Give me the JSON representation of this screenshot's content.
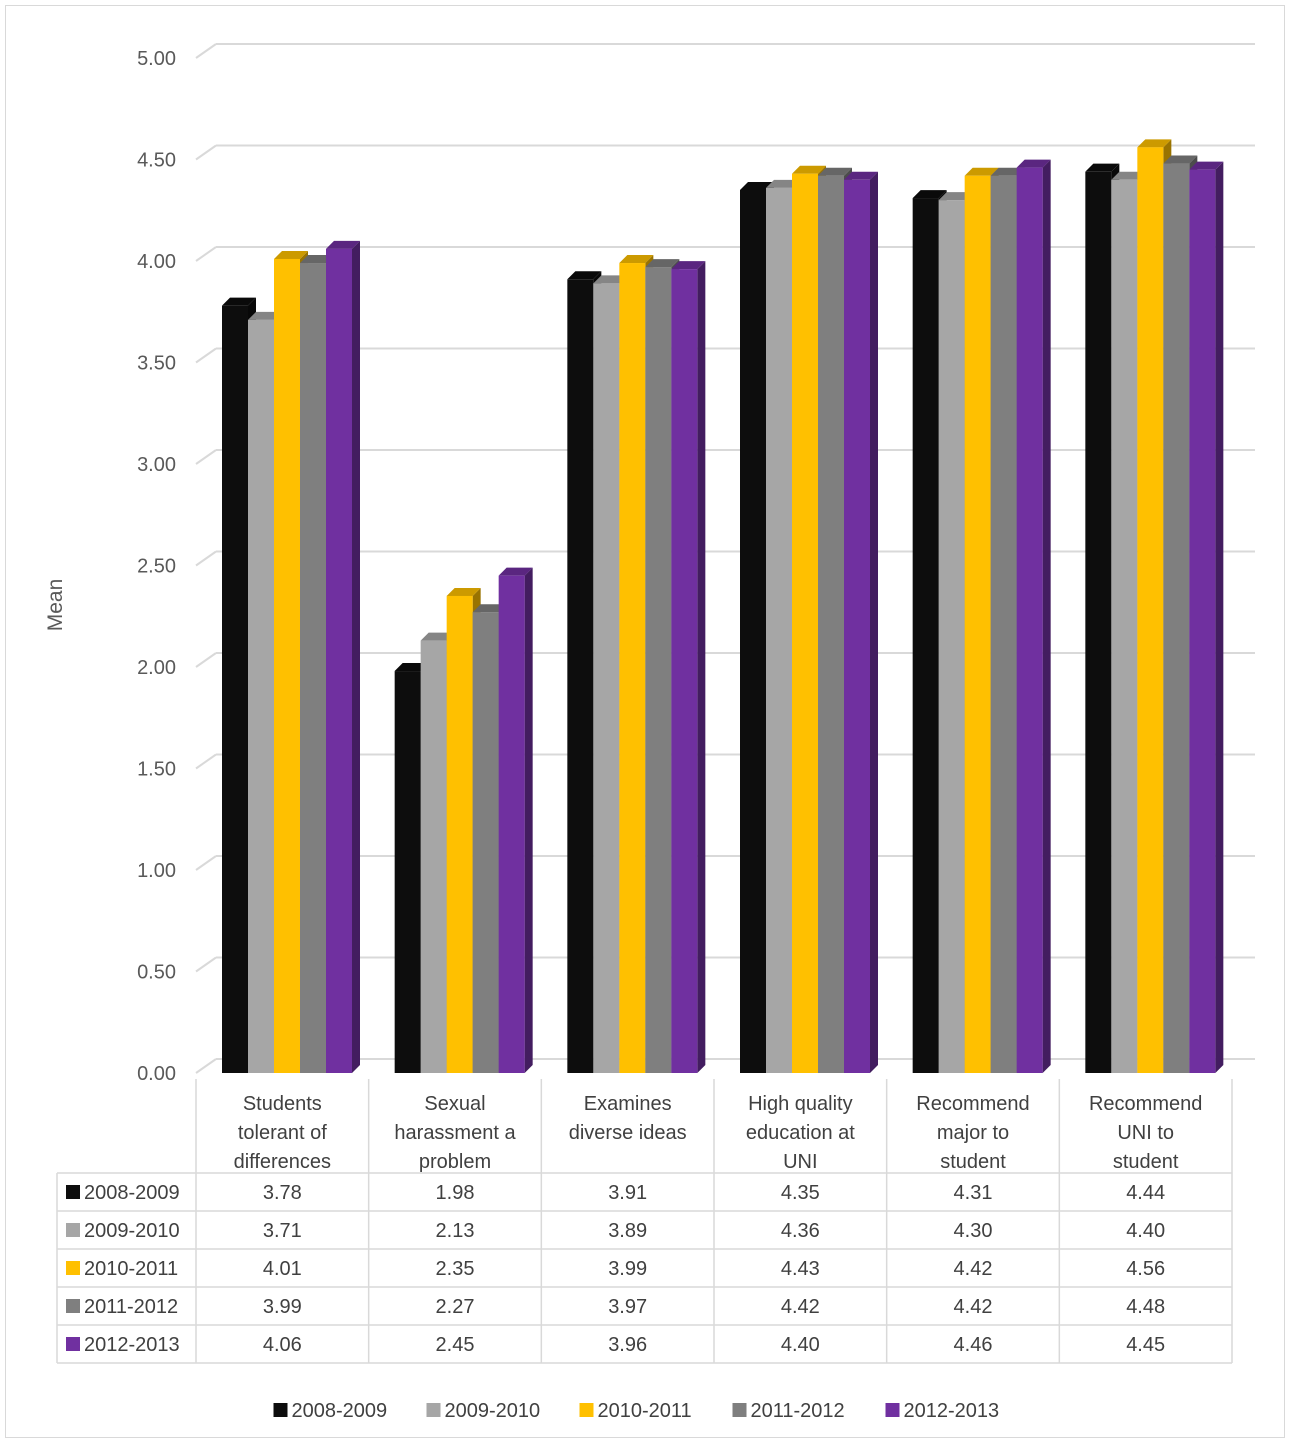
{
  "chart_data": {
    "type": "bar",
    "title": "",
    "xlabel": "",
    "ylabel": "Mean",
    "ylim": [
      0,
      5
    ],
    "y_ticks": [
      "0.00",
      "0.50",
      "1.00",
      "1.50",
      "2.00",
      "2.50",
      "3.00",
      "3.50",
      "4.00",
      "4.50",
      "5.00"
    ],
    "grid": true,
    "legend_position": "bottom",
    "data_table": true,
    "categories": [
      [
        "Students",
        "tolerant of",
        "differences"
      ],
      [
        "Sexual",
        "harassment a",
        "problem"
      ],
      [
        "Examines",
        "diverse ideas"
      ],
      [
        "High quality",
        "education at",
        "UNI"
      ],
      [
        "Recommend",
        "major to",
        "student"
      ],
      [
        "Recommend",
        "UNI to",
        "student"
      ]
    ],
    "series": [
      {
        "name": "2008-2009",
        "color": "#0d0d0d",
        "values": [
          3.78,
          1.98,
          3.91,
          4.35,
          4.31,
          4.44
        ],
        "labels": [
          "3.78",
          "1.98",
          "3.91",
          "4.35",
          "4.31",
          "4.44"
        ]
      },
      {
        "name": "2009-2010",
        "color": "#a6a6a6",
        "values": [
          3.71,
          2.13,
          3.89,
          4.36,
          4.3,
          4.4
        ],
        "labels": [
          "3.71",
          "2.13",
          "3.89",
          "4.36",
          "4.30",
          "4.40"
        ]
      },
      {
        "name": "2010-2011",
        "color": "#ffc000",
        "values": [
          4.01,
          2.35,
          3.99,
          4.43,
          4.42,
          4.56
        ],
        "labels": [
          "4.01",
          "2.35",
          "3.99",
          "4.43",
          "4.42",
          "4.56"
        ]
      },
      {
        "name": "2011-2012",
        "color": "#7f7f7f",
        "values": [
          3.99,
          2.27,
          3.97,
          4.42,
          4.42,
          4.48
        ],
        "labels": [
          "3.99",
          "2.27",
          "3.97",
          "4.42",
          "4.42",
          "4.48"
        ]
      },
      {
        "name": "2012-2013",
        "color": "#7030a0",
        "values": [
          4.06,
          2.45,
          3.96,
          4.4,
          4.46,
          4.45
        ],
        "labels": [
          "4.06",
          "2.45",
          "3.96",
          "4.40",
          "4.46",
          "4.45"
        ]
      }
    ]
  }
}
